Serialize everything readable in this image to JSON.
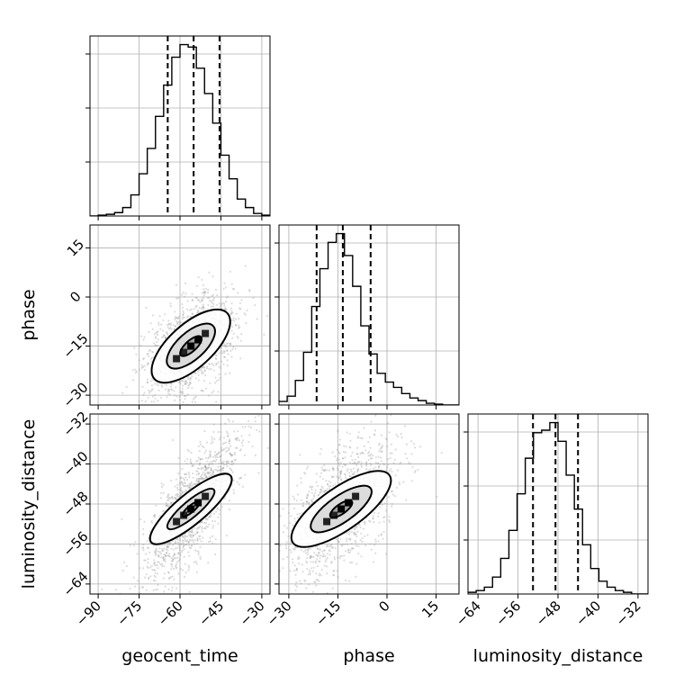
{
  "chart_data": {
    "type": "corner",
    "parameters": [
      "geocent_time",
      "phase",
      "luminosity_distance"
    ],
    "ranges": {
      "geocent_time": [
        -93,
        -27
      ],
      "phase": [
        -33,
        22
      ],
      "luminosity_distance": [
        -66,
        -30
      ]
    },
    "ticks": {
      "geocent_time": [
        -90,
        -75,
        -60,
        -45,
        -30
      ],
      "phase": [
        -30,
        -15,
        0,
        15
      ],
      "luminosity_distance": [
        -64,
        -56,
        -48,
        -40,
        -32
      ]
    },
    "tick_labels": {
      "geocent_time": [
        "−90",
        "−75",
        "−60",
        "−45",
        "−30"
      ],
      "phase": [
        "−30",
        "−15",
        "0",
        "15"
      ],
      "luminosity_distance": [
        "−64",
        "−56",
        "−48",
        "−40",
        "−32"
      ]
    },
    "quantiles": {
      "geocent_time": [
        -64.5,
        -55,
        -45.5
      ],
      "phase": [
        -21.5,
        -13.5,
        -5
      ],
      "luminosity_distance": [
        -53,
        -48.5,
        -44
      ]
    },
    "histograms": {
      "geocent_time": {
        "edges": [
          -93,
          -90,
          -87,
          -84,
          -81,
          -78,
          -75,
          -72,
          -69,
          -66,
          -63,
          -60,
          -57,
          -54,
          -51,
          -48,
          -45,
          -42,
          -39,
          -36,
          -33,
          -30,
          -27
        ],
        "counts": [
          0,
          1,
          2,
          4,
          10,
          25,
          50,
          80,
          118,
          155,
          188,
          203,
          200,
          175,
          145,
          110,
          72,
          44,
          20,
          10,
          3,
          1
        ]
      },
      "phase": {
        "edges": [
          -33,
          -30.5,
          -28,
          -25.5,
          -23,
          -20.5,
          -18,
          -15.5,
          -13,
          -10.5,
          -8,
          -5.5,
          -3,
          -0.5,
          2,
          4.5,
          7,
          9.5,
          12,
          14.5,
          17,
          19.5,
          22
        ],
        "counts": [
          4,
          10,
          28,
          60,
          112,
          155,
          185,
          195,
          170,
          135,
          90,
          58,
          36,
          26,
          20,
          13,
          8,
          5,
          2,
          1,
          0,
          0
        ]
      },
      "luminosity_distance": {
        "edges": [
          -66,
          -64.364,
          -62.727,
          -61.091,
          -59.455,
          -57.818,
          -56.182,
          -54.545,
          -52.909,
          -51.273,
          -49.636,
          -48,
          -46.364,
          -44.727,
          -43.091,
          -41.455,
          -39.818,
          -38.182,
          -36.545,
          -34.909,
          -33.273,
          -31.636,
          -30
        ],
        "counts": [
          2,
          4,
          8,
          20,
          42,
          75,
          118,
          160,
          190,
          193,
          202,
          180,
          140,
          100,
          58,
          30,
          15,
          8,
          4,
          2,
          0,
          0
        ]
      }
    },
    "contours_1sigma_2sigma": {
      "phase_vs_geocent_time": [
        {
          "center": [
            -56,
            -15
          ],
          "angle_deg": 42,
          "radii": [
            [
              5,
              2
            ],
            [
              11,
              5
            ],
            [
              18,
              8
            ]
          ]
        }
      ],
      "luminosity_distance_vs_geocent_time": [
        {
          "center": [
            -56,
            -49
          ],
          "angle_deg": 40,
          "radii": [
            [
              4,
              1.2
            ],
            [
              11,
              3
            ],
            [
              19,
              5.5
            ]
          ]
        }
      ],
      "luminosity_distance_vs_phase": [
        {
          "center": [
            -14,
            -49
          ],
          "angle_deg": 35,
          "radii": [
            [
              4,
              1.5
            ],
            [
              11,
              4
            ],
            [
              18,
              6.5
            ]
          ]
        }
      ]
    },
    "grid": true,
    "legend": "none"
  }
}
